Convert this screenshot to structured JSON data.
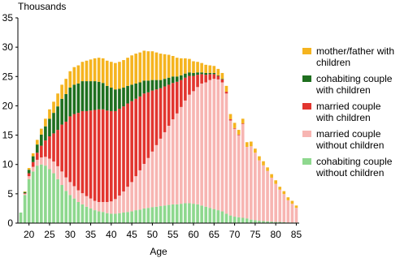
{
  "chart_data": {
    "type": "stacked-bar",
    "y_label": "Thousands",
    "x_label": "Age",
    "x": [
      18,
      19,
      20,
      21,
      22,
      23,
      24,
      25,
      26,
      27,
      28,
      29,
      30,
      31,
      32,
      33,
      34,
      35,
      36,
      37,
      38,
      39,
      40,
      41,
      42,
      43,
      44,
      45,
      46,
      47,
      48,
      49,
      50,
      51,
      52,
      53,
      54,
      55,
      56,
      57,
      58,
      59,
      60,
      61,
      62,
      63,
      64,
      65,
      66,
      67,
      68,
      69,
      70,
      71,
      72,
      73,
      74,
      75,
      76,
      77,
      78,
      79,
      80,
      81,
      82,
      83,
      84,
      85
    ],
    "xlim": [
      17.3,
      85.7
    ],
    "xticks": [
      20,
      25,
      30,
      35,
      40,
      45,
      50,
      55,
      60,
      65,
      70,
      75,
      80,
      85
    ],
    "ylim": [
      0,
      35
    ],
    "yticks": [
      0,
      5,
      10,
      15,
      20,
      25,
      30,
      35
    ],
    "series": [
      {
        "name": "cohabiting couple without children",
        "color": "#8ed88e",
        "values": [
          1.8,
          4.8,
          7.5,
          8.8,
          9.8,
          10,
          9.8,
          9.2,
          8.5,
          7.5,
          6.5,
          5.5,
          4.8,
          4.2,
          3.6,
          3.2,
          2.8,
          2.5,
          2.2,
          2,
          1.9,
          1.7,
          1.6,
          1.6,
          1.7,
          1.8,
          1.9,
          2,
          2.2,
          2.3,
          2.5,
          2.6,
          2.7,
          2.8,
          2.9,
          3,
          3.1,
          3.2,
          3.2,
          3.3,
          3.4,
          3.4,
          3.3,
          3.2,
          3,
          2.8,
          2.6,
          2.4,
          2.2,
          2,
          1.6,
          1.3,
          1.1,
          1,
          0.9,
          0.8,
          0.6,
          0.5,
          0.4,
          0.35,
          0.3,
          0.25,
          0.2,
          0.2,
          0.15,
          0.1,
          0.1,
          0.1
        ]
      },
      {
        "name": "married couple without children",
        "color": "#f7b5b2",
        "values": [
          0,
          0.2,
          0.5,
          0.8,
          1,
          1.2,
          1.5,
          1.8,
          2,
          2.2,
          2.3,
          2.3,
          2.2,
          2.1,
          2,
          1.9,
          1.8,
          1.7,
          1.6,
          1.6,
          1.7,
          1.9,
          2.1,
          2.5,
          3,
          3.6,
          4.3,
          5,
          5.8,
          6.7,
          7.6,
          8.5,
          9.5,
          10.5,
          11.5,
          12.5,
          13.5,
          14.5,
          15.5,
          16.5,
          17.5,
          18.5,
          19.2,
          20,
          20.8,
          21.2,
          21.8,
          22.2,
          22.3,
          22,
          20.5,
          16.2,
          15,
          14,
          16,
          12.2,
          12.5,
          11.5,
          10.3,
          9.5,
          8.6,
          7.5,
          6.5,
          5.5,
          4.8,
          3.8,
          3.2,
          2.5
        ]
      },
      {
        "name": "married couple with children",
        "color": "#e2352f",
        "values": [
          0,
          0.1,
          0.5,
          0.8,
          1.2,
          2,
          2.8,
          3.8,
          4.8,
          6.2,
          8,
          9.5,
          11.2,
          12.3,
          13.2,
          14,
          14.5,
          15,
          15.5,
          15.8,
          15.8,
          15.6,
          15.4,
          15,
          14.8,
          14.5,
          14.2,
          13.8,
          13.2,
          12.6,
          12,
          11.2,
          10.4,
          9.5,
          8.6,
          7.8,
          7,
          6.2,
          5.4,
          4.6,
          3.9,
          3.2,
          2.6,
          2.1,
          1.6,
          1.3,
          1,
          0.8,
          0.6,
          0.5,
          0.3,
          0.2,
          0.1,
          0.1,
          0.1,
          0,
          0,
          0,
          0,
          0,
          0,
          0,
          0,
          0,
          0,
          0,
          0,
          0
        ]
      },
      {
        "name": "cohabiting couple with children",
        "color": "#1f6f1f",
        "values": [
          0,
          0.2,
          0.6,
          1,
          1.4,
          1.9,
          2.4,
          3,
          3.5,
          4,
          4.4,
          4.7,
          4.9,
          5,
          5,
          5.1,
          5.1,
          5,
          4.9,
          4.7,
          4.5,
          4.2,
          4,
          3.7,
          3.4,
          3.2,
          3,
          2.8,
          2.6,
          2.4,
          2.2,
          2,
          1.8,
          1.6,
          1.4,
          1.3,
          1.2,
          1.1,
          0.9,
          0.8,
          0.7,
          0.6,
          0.5,
          0.4,
          0.3,
          0.3,
          0.2,
          0.2,
          0.1,
          0.1,
          0,
          0,
          0,
          0,
          0,
          0,
          0,
          0,
          0,
          0,
          0,
          0,
          0,
          0,
          0,
          0,
          0,
          0
        ]
      },
      {
        "name": "mother/father with children",
        "color": "#f5b41f",
        "values": [
          0,
          0.1,
          0.3,
          0.5,
          0.8,
          1,
          1.3,
          1.6,
          1.9,
          2.2,
          2.4,
          2.6,
          2.8,
          3,
          3.1,
          3.3,
          3.5,
          3.7,
          3.9,
          4.1,
          4.2,
          4.3,
          4.4,
          4.5,
          4.6,
          4.7,
          4.8,
          5,
          5.1,
          5.1,
          5.1,
          5,
          4.9,
          4.7,
          4.5,
          4.2,
          3.9,
          3.5,
          3.2,
          2.9,
          2.6,
          2.3,
          2,
          1.8,
          1.6,
          1.4,
          1.3,
          1.2,
          1.1,
          1,
          1,
          0.9,
          0.9,
          0.8,
          0.8,
          0.8,
          0.8,
          0.7,
          0.7,
          0.7,
          0.6,
          0.6,
          0.6,
          0.5,
          0.5,
          0.5,
          0.5,
          0.4
        ]
      }
    ]
  }
}
